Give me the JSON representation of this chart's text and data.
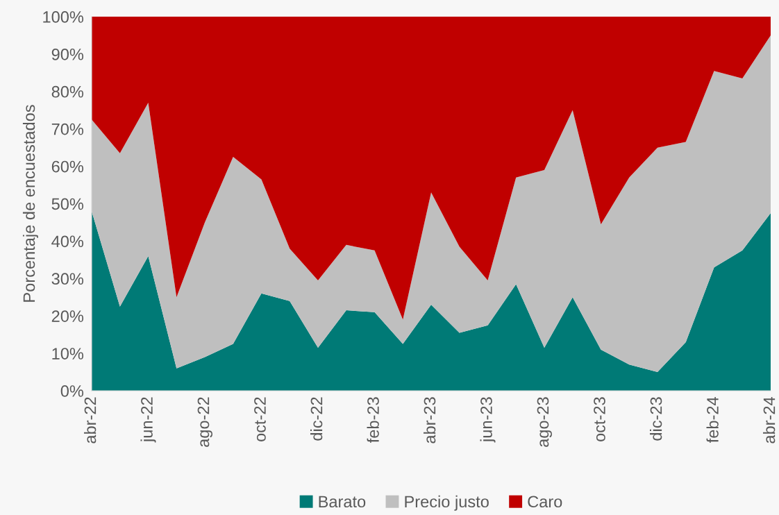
{
  "chart_data": {
    "type": "area",
    "stacked": true,
    "ylabel": "Porcentaje de encuestados",
    "categories": [
      "abr-22",
      null,
      "jun-22",
      null,
      "ago-22",
      null,
      "oct-22",
      null,
      "dic-22",
      null,
      "feb-23",
      null,
      "abr-23",
      null,
      "jun-23",
      null,
      "ago-23",
      null,
      "oct-23",
      null,
      "dic-23",
      null,
      "feb-24",
      null,
      "abr-24"
    ],
    "series": [
      {
        "name": "Barato",
        "color": "#007a76",
        "values": [
          48,
          22.5,
          36,
          6,
          9,
          12.5,
          26,
          24,
          11.5,
          21.5,
          21,
          12.5,
          23,
          15.5,
          17.5,
          28.5,
          11.5,
          25,
          11,
          7,
          5,
          13,
          33,
          37.5,
          47.5
        ]
      },
      {
        "name": "Precio justo",
        "color": "#bfbfbf",
        "values": [
          24.5,
          41,
          41,
          19,
          36,
          50,
          30.5,
          14,
          18,
          17.5,
          16.5,
          6.5,
          30,
          23,
          12,
          28.5,
          47.5,
          50,
          33.5,
          50,
          60,
          53.5,
          52.5,
          46,
          47.5
        ]
      },
      {
        "name": "Caro",
        "color": "#c00000",
        "values": [
          27.5,
          36.5,
          23,
          75,
          55,
          37.5,
          43.5,
          62,
          70.5,
          61,
          62.5,
          81,
          47,
          61.5,
          70.5,
          43,
          41,
          25,
          55.5,
          43,
          35,
          33.5,
          14.5,
          16.5,
          5
        ]
      }
    ],
    "ylim": [
      0,
      100
    ],
    "yticks": [
      {
        "value": 0,
        "label": "0%"
      },
      {
        "value": 10,
        "label": "10%"
      },
      {
        "value": 20,
        "label": "20%"
      },
      {
        "value": 30,
        "label": "30%"
      },
      {
        "value": 40,
        "label": "40%"
      },
      {
        "value": 50,
        "label": "50%"
      },
      {
        "value": 60,
        "label": "60%"
      },
      {
        "value": 70,
        "label": "70%"
      },
      {
        "value": 80,
        "label": "80%"
      },
      {
        "value": 90,
        "label": "90%"
      },
      {
        "value": 100,
        "label": "100%"
      }
    ],
    "grid": false,
    "legend": "bottom"
  }
}
